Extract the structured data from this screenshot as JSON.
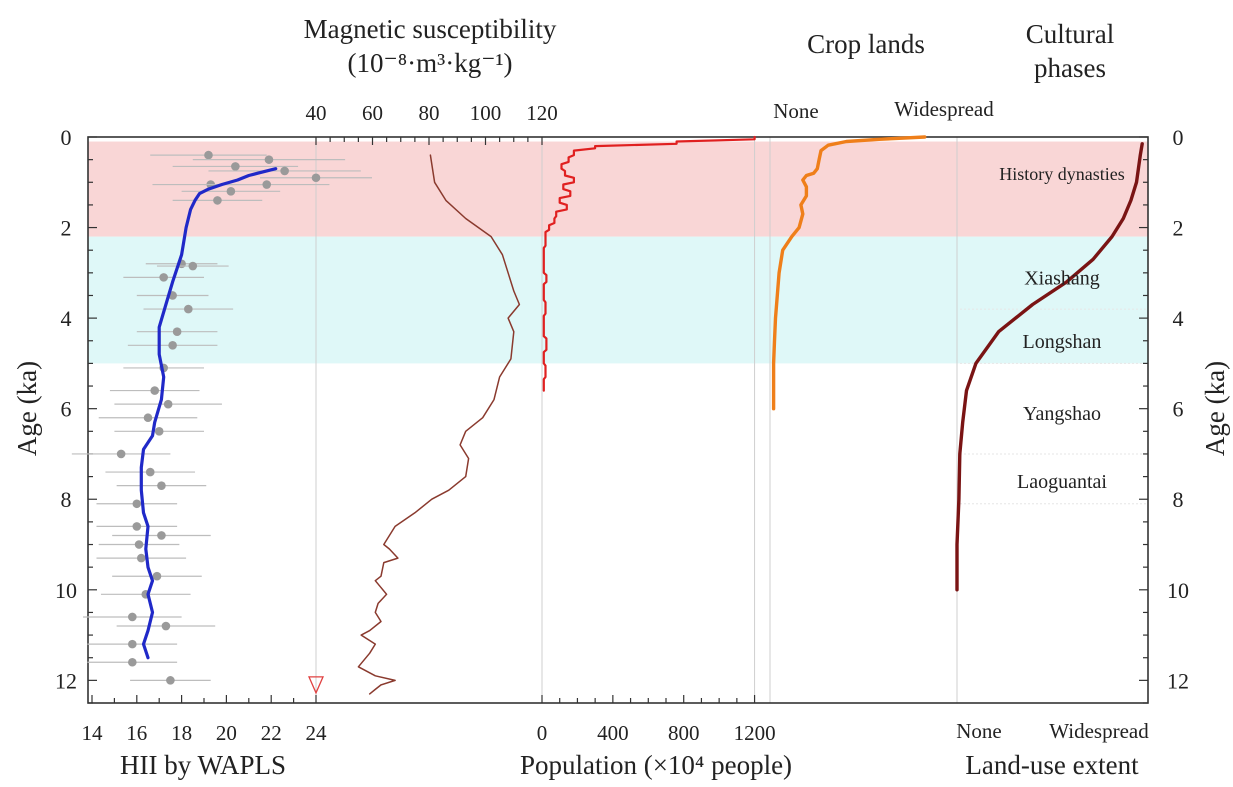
{
  "titles": {
    "magnetic": "Magnetic susceptibility",
    "magnetic_units": "(10⁻⁸·m³·kg⁻¹)",
    "crop": "Crop lands",
    "cultural_line1": "Cultural",
    "cultural_line2": "phases",
    "hii": "HII by WAPLS",
    "population": "Population (×10⁴ people)",
    "landuse": "Land-use extent",
    "age_left": "Age (ka)",
    "age_right": "Age (ka)"
  },
  "colors": {
    "history_band": "#f9d6d6",
    "xiashang_longshan_band": "#dff8f8",
    "hii": "#2029c8",
    "magnetic": "#8a3a2e",
    "population": "#e02020",
    "crop": "#ef7f1a",
    "landuse": "#7a1414",
    "samples": "#9a9a9a"
  },
  "chart_data": {
    "type": "line",
    "y_axis": {
      "label": "Age (ka)",
      "range": [
        0,
        12.5
      ],
      "ticks": [
        0,
        2,
        4,
        6,
        8,
        10,
        12
      ],
      "inverted": true
    },
    "bands": [
      {
        "label": "History dynasties",
        "from": 0.1,
        "to": 2.2
      },
      {
        "label": "Xiashang",
        "from": 2.2,
        "to": 3.8
      },
      {
        "label": "Longshan",
        "from": 3.8,
        "to": 5.0
      },
      {
        "label": "Yangshao",
        "from": 5.0,
        "to": 7.0
      },
      {
        "label": "Laoguantai",
        "from": 7.0,
        "to": 8.1
      }
    ],
    "phase_label_ages": {
      "History dynasties": 0.8,
      "Xiashang": 3.1,
      "Longshan": 4.5,
      "Yangshao": 6.1,
      "Laoguantai": 7.6
    },
    "hii": {
      "name": "HII by WAPLS",
      "xlim": [
        14,
        24
      ],
      "ticks": [
        14,
        16,
        18,
        20,
        22,
        24
      ],
      "line": [
        [
          22.2,
          0.7
        ],
        [
          21.4,
          0.8
        ],
        [
          21.0,
          0.85
        ],
        [
          20.5,
          0.95
        ],
        [
          19.8,
          1.05
        ],
        [
          19.2,
          1.15
        ],
        [
          18.8,
          1.25
        ],
        [
          18.6,
          1.4
        ],
        [
          18.4,
          1.6
        ],
        [
          18.2,
          2.0
        ],
        [
          18.0,
          2.6
        ],
        [
          17.6,
          3.2
        ],
        [
          17.3,
          3.7
        ],
        [
          17.0,
          4.2
        ],
        [
          17.0,
          4.8
        ],
        [
          17.2,
          5.3
        ],
        [
          17.1,
          5.8
        ],
        [
          16.8,
          6.3
        ],
        [
          16.7,
          6.6
        ],
        [
          16.3,
          6.9
        ],
        [
          16.2,
          7.3
        ],
        [
          16.2,
          7.8
        ],
        [
          16.3,
          8.3
        ],
        [
          16.5,
          8.6
        ],
        [
          16.4,
          9.1
        ],
        [
          16.5,
          9.5
        ],
        [
          16.7,
          9.8
        ],
        [
          16.5,
          10.1
        ],
        [
          16.7,
          10.5
        ],
        [
          16.5,
          10.9
        ],
        [
          16.3,
          11.2
        ],
        [
          16.5,
          11.5
        ]
      ],
      "samples": [
        [
          19.2,
          0.4,
          2.6
        ],
        [
          21.9,
          0.5,
          3.4
        ],
        [
          20.4,
          0.65,
          2.8
        ],
        [
          22.6,
          0.75,
          3.4
        ],
        [
          24.0,
          0.9,
          2.5
        ],
        [
          19.3,
          1.05,
          2.6
        ],
        [
          21.8,
          1.05,
          2.8
        ],
        [
          20.2,
          1.2,
          2.2
        ],
        [
          19.6,
          1.4,
          2.0
        ],
        [
          18.0,
          2.8,
          1.6
        ],
        [
          18.5,
          2.85,
          1.6
        ],
        [
          17.2,
          3.1,
          1.8
        ],
        [
          17.6,
          3.5,
          1.6
        ],
        [
          18.3,
          3.8,
          2.0
        ],
        [
          17.8,
          4.3,
          1.8
        ],
        [
          17.6,
          4.6,
          2.0
        ],
        [
          17.2,
          5.1,
          1.8
        ],
        [
          16.8,
          5.6,
          2.0
        ],
        [
          17.4,
          5.9,
          2.4
        ],
        [
          16.5,
          6.2,
          2.2
        ],
        [
          17.0,
          6.5,
          2.0
        ],
        [
          15.3,
          7.0,
          2.2
        ],
        [
          16.6,
          7.4,
          2.0
        ],
        [
          17.1,
          7.7,
          2.0
        ],
        [
          16.0,
          8.1,
          1.8
        ],
        [
          16.0,
          8.6,
          1.8
        ],
        [
          17.1,
          8.8,
          2.2
        ],
        [
          16.1,
          9.0,
          1.8
        ],
        [
          16.2,
          9.3,
          2.0
        ],
        [
          16.9,
          9.7,
          2.0
        ],
        [
          16.4,
          10.1,
          2.0
        ],
        [
          15.8,
          10.6,
          2.2
        ],
        [
          17.3,
          10.8,
          2.2
        ],
        [
          15.8,
          11.2,
          2.0
        ],
        [
          15.8,
          11.6,
          2.0
        ],
        [
          17.5,
          12.0,
          1.8
        ]
      ]
    },
    "magnetic": {
      "name": "Magnetic susceptibility",
      "xlim": [
        40,
        120
      ],
      "ticks": [
        40,
        60,
        80,
        100,
        120
      ],
      "line": [
        [
          80.5,
          0.4
        ],
        [
          81.5,
          0.8
        ],
        [
          82,
          1.0
        ],
        [
          86,
          1.4
        ],
        [
          93,
          1.8
        ],
        [
          102,
          2.2
        ],
        [
          106,
          2.6
        ],
        [
          108,
          3.0
        ],
        [
          110,
          3.4
        ],
        [
          112,
          3.7
        ],
        [
          108,
          4.0
        ],
        [
          110,
          4.3
        ],
        [
          109,
          4.9
        ],
        [
          105,
          5.3
        ],
        [
          103,
          5.8
        ],
        [
          99,
          6.2
        ],
        [
          93,
          6.5
        ],
        [
          91,
          6.8
        ],
        [
          94,
          7.1
        ],
        [
          93,
          7.5
        ],
        [
          87,
          7.8
        ],
        [
          81,
          8.0
        ],
        [
          75,
          8.3
        ],
        [
          68,
          8.6
        ],
        [
          64,
          9.0
        ],
        [
          66,
          9.1
        ],
        [
          69,
          9.3
        ],
        [
          64,
          9.4
        ],
        [
          63,
          9.7
        ],
        [
          61,
          9.8
        ],
        [
          65,
          10.1
        ],
        [
          62,
          10.3
        ],
        [
          61,
          10.5
        ],
        [
          63,
          10.7
        ],
        [
          59,
          10.9
        ],
        [
          56,
          11.0
        ],
        [
          61,
          11.2
        ],
        [
          59,
          11.4
        ],
        [
          55,
          11.7
        ],
        [
          61,
          11.9
        ],
        [
          68,
          12.0
        ],
        [
          63,
          12.1
        ],
        [
          61,
          12.2
        ],
        [
          59,
          12.3
        ]
      ],
      "marker_label": "40",
      "marker_age": 12.1
    },
    "population": {
      "name": "Population (×10⁴ people)",
      "xlim": [
        0,
        1400
      ],
      "ticks": [
        0,
        400,
        800,
        1200
      ],
      "line": [
        [
          1200,
          0.0
        ],
        [
          1200,
          0.05
        ],
        [
          760,
          0.1
        ],
        [
          760,
          0.15
        ],
        [
          300,
          0.2
        ],
        [
          300,
          0.25
        ],
        [
          180,
          0.3
        ],
        [
          180,
          0.4
        ],
        [
          150,
          0.45
        ],
        [
          150,
          0.55
        ],
        [
          110,
          0.6
        ],
        [
          110,
          0.7
        ],
        [
          130,
          0.75
        ],
        [
          130,
          0.85
        ],
        [
          180,
          0.9
        ],
        [
          180,
          1.0
        ],
        [
          120,
          1.05
        ],
        [
          120,
          1.15
        ],
        [
          160,
          1.2
        ],
        [
          160,
          1.3
        ],
        [
          100,
          1.35
        ],
        [
          100,
          1.45
        ],
        [
          140,
          1.5
        ],
        [
          140,
          1.6
        ],
        [
          80,
          1.65
        ],
        [
          80,
          1.75
        ],
        [
          70,
          1.8
        ],
        [
          70,
          1.9
        ],
        [
          40,
          1.95
        ],
        [
          40,
          2.05
        ],
        [
          20,
          2.1
        ],
        [
          20,
          2.4
        ],
        [
          10,
          2.45
        ],
        [
          10,
          3.0
        ],
        [
          25,
          3.05
        ],
        [
          25,
          3.2
        ],
        [
          10,
          3.25
        ],
        [
          10,
          3.6
        ],
        [
          20,
          3.65
        ],
        [
          20,
          3.9
        ],
        [
          10,
          3.95
        ],
        [
          10,
          4.4
        ],
        [
          25,
          4.45
        ],
        [
          25,
          4.7
        ],
        [
          10,
          4.75
        ],
        [
          10,
          5.0
        ],
        [
          20,
          5.05
        ],
        [
          20,
          5.3
        ],
        [
          10,
          5.35
        ],
        [
          10,
          5.6
        ]
      ]
    },
    "crop": {
      "name": "Crop lands",
      "xlim_labels": [
        "None",
        "Widespread"
      ],
      "line": [
        [
          0.85,
          0.0
        ],
        [
          0.6,
          0.05
        ],
        [
          0.42,
          0.1
        ],
        [
          0.32,
          0.18
        ],
        [
          0.28,
          0.3
        ],
        [
          0.27,
          0.5
        ],
        [
          0.26,
          0.7
        ],
        [
          0.24,
          0.8
        ],
        [
          0.2,
          0.85
        ],
        [
          0.18,
          0.95
        ],
        [
          0.2,
          1.1
        ],
        [
          0.2,
          1.3
        ],
        [
          0.17,
          1.5
        ],
        [
          0.18,
          1.7
        ],
        [
          0.16,
          2.0
        ],
        [
          0.12,
          2.2
        ],
        [
          0.07,
          2.5
        ],
        [
          0.05,
          3.0
        ],
        [
          0.04,
          3.5
        ],
        [
          0.03,
          4.0
        ],
        [
          0.025,
          4.5
        ],
        [
          0.02,
          5.0
        ],
        [
          0.02,
          5.5
        ],
        [
          0.02,
          6.0
        ]
      ]
    },
    "landuse": {
      "name": "Land-use extent",
      "xlim_labels": [
        "None",
        "Widespread"
      ],
      "line": [
        [
          0.98,
          0.15
        ],
        [
          0.97,
          0.4
        ],
        [
          0.96,
          0.7
        ],
        [
          0.95,
          1.0
        ],
        [
          0.92,
          1.4
        ],
        [
          0.88,
          1.8
        ],
        [
          0.82,
          2.2
        ],
        [
          0.72,
          2.7
        ],
        [
          0.58,
          3.2
        ],
        [
          0.4,
          3.7
        ],
        [
          0.22,
          4.3
        ],
        [
          0.1,
          5.0
        ],
        [
          0.05,
          5.6
        ],
        [
          0.03,
          6.3
        ],
        [
          0.015,
          7.0
        ],
        [
          0.01,
          8.0
        ],
        [
          0.0,
          9.0
        ],
        [
          0.0,
          10.0
        ]
      ]
    }
  }
}
